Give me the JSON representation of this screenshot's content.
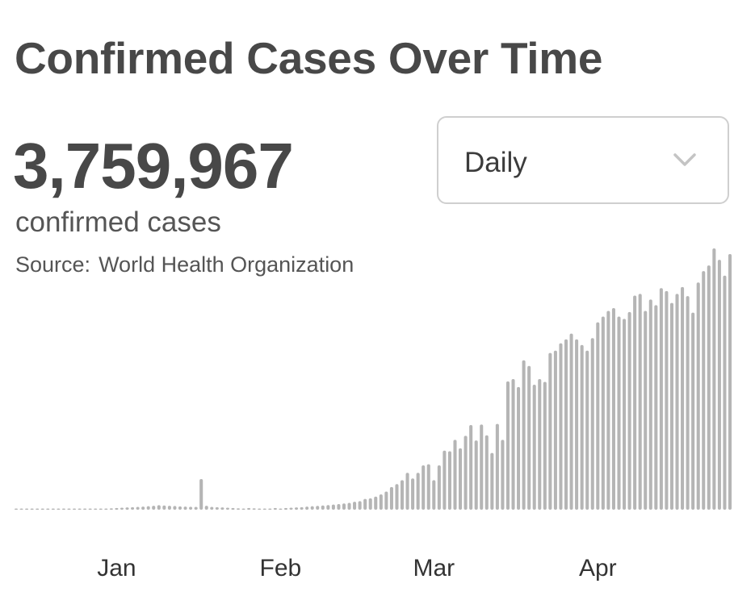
{
  "header": {
    "title": "Confirmed Cases Over Time",
    "total": "3,759,967",
    "total_label": "confirmed cases",
    "source_label": "Source:",
    "source_name": "World Health Organization"
  },
  "dropdown": {
    "selected": "Daily",
    "icon": "chevron-down-icon"
  },
  "colors": {
    "bar": "#b5b5b5",
    "text": "#484848"
  },
  "chart_data": {
    "type": "bar",
    "title": "Confirmed Cases Over Time",
    "xlabel": "",
    "ylabel": "",
    "ticks": [
      {
        "label": "Jan",
        "index": 19
      },
      {
        "label": "Feb",
        "index": 50
      },
      {
        "label": "Mar",
        "index": 79
      },
      {
        "label": "Apr",
        "index": 110
      }
    ],
    "values": [
      0,
      0,
      0,
      0,
      0,
      0,
      0,
      0,
      10,
      10,
      10,
      20,
      30,
      40,
      100,
      150,
      180,
      200,
      250,
      300,
      350,
      400,
      450,
      500,
      550,
      620,
      700,
      800,
      750,
      700,
      650,
      580,
      550,
      520,
      500,
      5400,
      700,
      500,
      450,
      400,
      350,
      300,
      250,
      200,
      300,
      250,
      200,
      180,
      150,
      300,
      200,
      300,
      350,
      400,
      450,
      550,
      620,
      680,
      750,
      820,
      900,
      1000,
      1100,
      1200,
      1400,
      1500,
      1900,
      2000,
      2300,
      2700,
      3200,
      4000,
      4500,
      5200,
      6500,
      5500,
      6500,
      7800,
      8000,
      5200,
      7800,
      10400,
      10300,
      12300,
      10800,
      13000,
      14900,
      12200,
      15000,
      13100,
      10000,
      15100,
      12300,
      22600,
      23000,
      21600,
      26300,
      25300,
      22000,
      23000,
      22500,
      27600,
      28000,
      29300,
      30000,
      31000,
      30000,
      29000,
      28000,
      30200,
      33000,
      34000,
      35000,
      35500,
      34000,
      33600,
      34800,
      37700,
      38000,
      35000,
      37000,
      36000,
      39000,
      38500,
      36400,
      38000,
      39200,
      37600,
      34700,
      40000,
      42000,
      43000,
      46000,
      44000,
      41200,
      45000
    ],
    "scale": "linear"
  }
}
